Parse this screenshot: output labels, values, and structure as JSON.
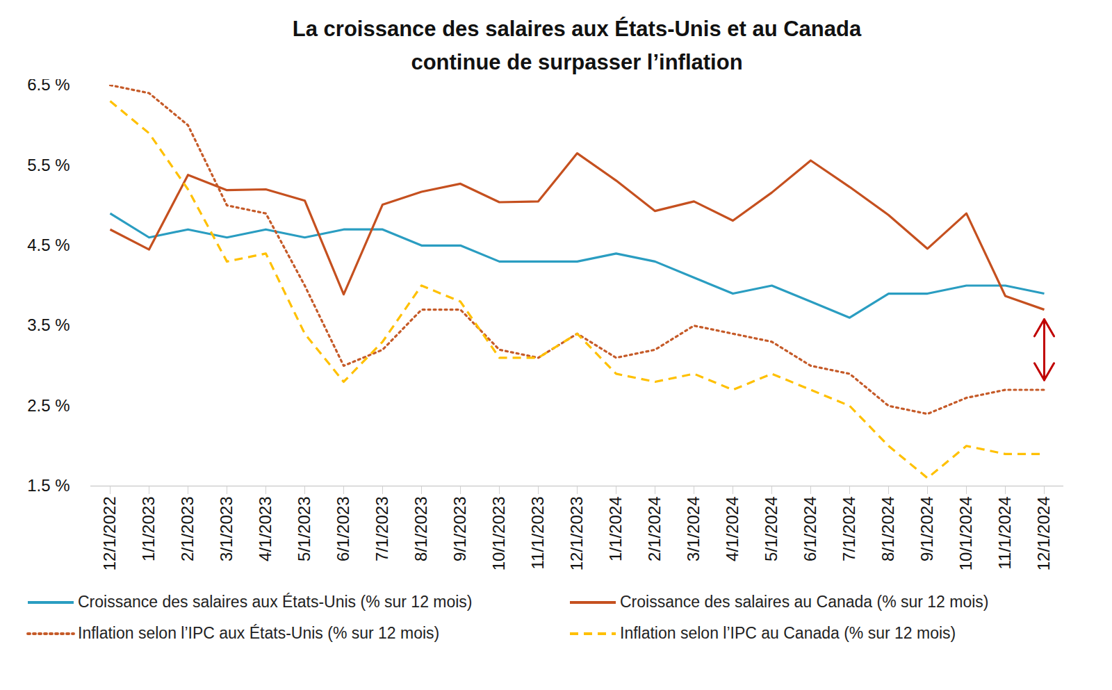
{
  "chart_data": {
    "type": "line",
    "title": "La croissance des salaires aux États-Unis et au Canada continue de surpasser l’inflation",
    "categories": [
      "12/1/2022",
      "1/1/2023",
      "2/1/2023",
      "3/1/2023",
      "4/1/2023",
      "5/1/2023",
      "6/1/2023",
      "7/1/2023",
      "8/1/2023",
      "9/1/2023",
      "10/1/2023",
      "11/1/2023",
      "12/1/2023",
      "1/1/2024",
      "2/1/2024",
      "3/1/2024",
      "4/1/2024",
      "5/1/2024",
      "6/1/2024",
      "7/1/2024",
      "8/1/2024",
      "9/1/2024",
      "10/1/2024",
      "11/1/2024",
      "12/1/2024"
    ],
    "series": [
      {
        "name": "Croissance des salaires aux États-Unis (% sur 12 mois)",
        "color": "#2a9dc1",
        "line_style": "solid",
        "values": [
          4.9,
          4.6,
          4.7,
          4.6,
          4.7,
          4.6,
          4.7,
          4.7,
          4.5,
          4.5,
          4.3,
          4.3,
          4.3,
          4.4,
          4.3,
          4.1,
          3.9,
          4.0,
          3.8,
          3.6,
          3.9,
          3.9,
          4.0,
          4.0,
          3.9
        ]
      },
      {
        "name": "Croissance des salaires au Canada (% sur 12 mois)",
        "color": "#c5501f",
        "line_style": "solid",
        "values": [
          4.7,
          4.45,
          5.38,
          5.19,
          5.2,
          5.06,
          3.89,
          5.01,
          5.17,
          5.27,
          5.04,
          5.05,
          5.65,
          5.31,
          4.93,
          5.05,
          4.81,
          5.16,
          5.56,
          5.23,
          4.88,
          4.46,
          4.9,
          3.87,
          3.7
        ]
      },
      {
        "name": "Inflation selon l’IPC aux États-Unis (% sur 12 mois)",
        "color": "#c55a28",
        "line_style": "dotted",
        "values": [
          6.5,
          6.4,
          6.0,
          5.0,
          4.9,
          4.0,
          3.0,
          3.2,
          3.7,
          3.7,
          3.2,
          3.1,
          3.4,
          3.1,
          3.2,
          3.5,
          3.4,
          3.3,
          3.0,
          2.9,
          2.5,
          2.4,
          2.6,
          2.7,
          2.7
        ]
      },
      {
        "name": "Inflation selon l’IPC au Canada (% sur 12 mois)",
        "color": "#ffc000",
        "line_style": "dashed",
        "values": [
          6.3,
          5.9,
          5.2,
          4.3,
          4.4,
          3.4,
          2.8,
          3.3,
          4.0,
          3.8,
          3.1,
          3.1,
          3.4,
          2.9,
          2.8,
          2.9,
          2.7,
          2.9,
          2.7,
          2.5,
          2.0,
          1.6,
          2.0,
          1.9,
          1.9
        ]
      }
    ],
    "ylim": [
      1.5,
      6.5
    ],
    "yticks": [
      {
        "value": 1.5,
        "label": "1.5 %"
      },
      {
        "value": 2.5,
        "label": "2.5 %"
      },
      {
        "value": 3.5,
        "label": "3.5 %"
      },
      {
        "value": 4.5,
        "label": "4.5 %"
      },
      {
        "value": 5.5,
        "label": "5.5 %"
      },
      {
        "value": 6.5,
        "label": "6.5 %"
      }
    ],
    "grid": false,
    "legend": "bottom"
  }
}
